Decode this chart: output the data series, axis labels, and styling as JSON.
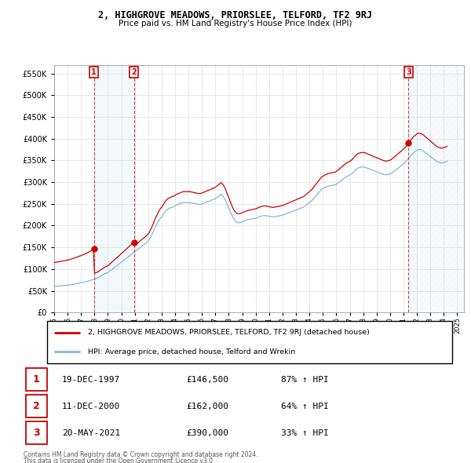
{
  "title": "2, HIGHGROVE MEADOWS, PRIORSLEE, TELFORD, TF2 9RJ",
  "subtitle": "Price paid vs. HM Land Registry's House Price Index (HPI)",
  "legend_line1": "2, HIGHGROVE MEADOWS, PRIORSLEE, TELFORD, TF2 9RJ (detached house)",
  "legend_line2": "HPI: Average price, detached house, Telford and Wrekin",
  "footer1": "Contains HM Land Registry data © Crown copyright and database right 2024.",
  "footer2": "This data is licensed under the Open Government Licence v3.0.",
  "sales": [
    {
      "num": 1,
      "date": "19-DEC-1997",
      "price": 146500,
      "pct": "87%",
      "dir": "↑",
      "x": 1997.96
    },
    {
      "num": 2,
      "date": "11-DEC-2000",
      "price": 162000,
      "pct": "64%",
      "dir": "↑",
      "x": 2000.94
    },
    {
      "num": 3,
      "date": "20-MAY-2021",
      "price": 390000,
      "pct": "33%",
      "dir": "↑",
      "x": 2021.38
    }
  ],
  "hpi_color": "#7db8d8",
  "sale_color": "#cc0000",
  "ylim": [
    0,
    570000
  ],
  "xlim": [
    1995.0,
    2025.5
  ],
  "yticks": [
    0,
    50000,
    100000,
    150000,
    200000,
    250000,
    300000,
    350000,
    400000,
    450000,
    500000,
    550000
  ],
  "xticks": [
    1995,
    1996,
    1997,
    1998,
    1999,
    2000,
    2001,
    2002,
    2003,
    2004,
    2005,
    2006,
    2007,
    2008,
    2009,
    2010,
    2011,
    2012,
    2013,
    2014,
    2015,
    2016,
    2017,
    2018,
    2019,
    2020,
    2021,
    2022,
    2023,
    2024,
    2025
  ],
  "hpi_data": {
    "years": [
      1995.0,
      1995.083,
      1995.167,
      1995.25,
      1995.333,
      1995.417,
      1995.5,
      1995.583,
      1995.667,
      1995.75,
      1995.833,
      1995.917,
      1996.0,
      1996.083,
      1996.167,
      1996.25,
      1996.333,
      1996.417,
      1996.5,
      1996.583,
      1996.667,
      1996.75,
      1996.833,
      1996.917,
      1997.0,
      1997.083,
      1997.167,
      1997.25,
      1997.333,
      1997.417,
      1997.5,
      1997.583,
      1997.667,
      1997.75,
      1997.833,
      1997.917,
      1998.0,
      1998.083,
      1998.167,
      1998.25,
      1998.333,
      1998.417,
      1998.5,
      1998.583,
      1998.667,
      1998.75,
      1998.833,
      1998.917,
      1999.0,
      1999.083,
      1999.167,
      1999.25,
      1999.333,
      1999.417,
      1999.5,
      1999.583,
      1999.667,
      1999.75,
      1999.833,
      1999.917,
      2000.0,
      2000.083,
      2000.167,
      2000.25,
      2000.333,
      2000.417,
      2000.5,
      2000.583,
      2000.667,
      2000.75,
      2000.833,
      2000.917,
      2001.0,
      2001.083,
      2001.167,
      2001.25,
      2001.333,
      2001.417,
      2001.5,
      2001.583,
      2001.667,
      2001.75,
      2001.833,
      2001.917,
      2002.0,
      2002.083,
      2002.167,
      2002.25,
      2002.333,
      2002.417,
      2002.5,
      2002.583,
      2002.667,
      2002.75,
      2002.833,
      2002.917,
      2003.0,
      2003.083,
      2003.167,
      2003.25,
      2003.333,
      2003.417,
      2003.5,
      2003.583,
      2003.667,
      2003.75,
      2003.833,
      2003.917,
      2004.0,
      2004.083,
      2004.167,
      2004.25,
      2004.333,
      2004.417,
      2004.5,
      2004.583,
      2004.667,
      2004.75,
      2004.833,
      2004.917,
      2005.0,
      2005.083,
      2005.167,
      2005.25,
      2005.333,
      2005.417,
      2005.5,
      2005.583,
      2005.667,
      2005.75,
      2005.833,
      2005.917,
      2006.0,
      2006.083,
      2006.167,
      2006.25,
      2006.333,
      2006.417,
      2006.5,
      2006.583,
      2006.667,
      2006.75,
      2006.833,
      2006.917,
      2007.0,
      2007.083,
      2007.167,
      2007.25,
      2007.333,
      2007.417,
      2007.5,
      2007.583,
      2007.667,
      2007.75,
      2007.833,
      2007.917,
      2008.0,
      2008.083,
      2008.167,
      2008.25,
      2008.333,
      2008.417,
      2008.5,
      2008.583,
      2008.667,
      2008.75,
      2008.833,
      2008.917,
      2009.0,
      2009.083,
      2009.167,
      2009.25,
      2009.333,
      2009.417,
      2009.5,
      2009.583,
      2009.667,
      2009.75,
      2009.833,
      2009.917,
      2010.0,
      2010.083,
      2010.167,
      2010.25,
      2010.333,
      2010.417,
      2010.5,
      2010.583,
      2010.667,
      2010.75,
      2010.833,
      2010.917,
      2011.0,
      2011.083,
      2011.167,
      2011.25,
      2011.333,
      2011.417,
      2011.5,
      2011.583,
      2011.667,
      2011.75,
      2011.833,
      2011.917,
      2012.0,
      2012.083,
      2012.167,
      2012.25,
      2012.333,
      2012.417,
      2012.5,
      2012.583,
      2012.667,
      2012.75,
      2012.833,
      2012.917,
      2013.0,
      2013.083,
      2013.167,
      2013.25,
      2013.333,
      2013.417,
      2013.5,
      2013.583,
      2013.667,
      2013.75,
      2013.833,
      2013.917,
      2014.0,
      2014.083,
      2014.167,
      2014.25,
      2014.333,
      2014.417,
      2014.5,
      2014.583,
      2014.667,
      2014.75,
      2014.833,
      2014.917,
      2015.0,
      2015.083,
      2015.167,
      2015.25,
      2015.333,
      2015.417,
      2015.5,
      2015.583,
      2015.667,
      2015.75,
      2015.833,
      2015.917,
      2016.0,
      2016.083,
      2016.167,
      2016.25,
      2016.333,
      2016.417,
      2016.5,
      2016.583,
      2016.667,
      2016.75,
      2016.833,
      2016.917,
      2017.0,
      2017.083,
      2017.167,
      2017.25,
      2017.333,
      2017.417,
      2017.5,
      2017.583,
      2017.667,
      2017.75,
      2017.833,
      2017.917,
      2018.0,
      2018.083,
      2018.167,
      2018.25,
      2018.333,
      2018.417,
      2018.5,
      2018.583,
      2018.667,
      2018.75,
      2018.833,
      2018.917,
      2019.0,
      2019.083,
      2019.167,
      2019.25,
      2019.333,
      2019.417,
      2019.5,
      2019.583,
      2019.667,
      2019.75,
      2019.833,
      2019.917,
      2020.0,
      2020.083,
      2020.167,
      2020.25,
      2020.333,
      2020.417,
      2020.5,
      2020.583,
      2020.667,
      2020.75,
      2020.833,
      2020.917,
      2021.0,
      2021.083,
      2021.167,
      2021.25,
      2021.333,
      2021.417,
      2021.5,
      2021.583,
      2021.667,
      2021.75,
      2021.833,
      2021.917,
      2022.0,
      2022.083,
      2022.167,
      2022.25,
      2022.333,
      2022.417,
      2022.5,
      2022.583,
      2022.667,
      2022.75,
      2022.833,
      2022.917,
      2023.0,
      2023.083,
      2023.167,
      2023.25,
      2023.333,
      2023.417,
      2023.5,
      2023.583,
      2023.667,
      2023.75,
      2023.833,
      2023.917,
      2024.0,
      2024.083,
      2024.167,
      2024.25
    ],
    "values": [
      60000,
      60200,
      60500,
      60800,
      61000,
      61200,
      61500,
      61800,
      62000,
      62200,
      62500,
      62800,
      63000,
      63300,
      63600,
      64000,
      64500,
      65000,
      65500,
      66000,
      66500,
      67000,
      67500,
      68000,
      68500,
      69000,
      69500,
      70000,
      70500,
      71200,
      72000,
      72800,
      73500,
      74200,
      75000,
      76000,
      77000,
      78000,
      79000,
      80000,
      81500,
      83000,
      84500,
      86000,
      87500,
      89000,
      90000,
      91000,
      92000,
      94000,
      96000,
      98000,
      100000,
      102000,
      104000,
      106000,
      108000,
      110000,
      112000,
      114000,
      116000,
      118000,
      120000,
      122000,
      124000,
      126000,
      128000,
      130000,
      132000,
      134000,
      136000,
      138000,
      140000,
      142000,
      144000,
      146000,
      148000,
      150000,
      152000,
      154000,
      156000,
      158000,
      160000,
      162000,
      164000,
      168000,
      173000,
      178000,
      183000,
      189000,
      195000,
      200000,
      205000,
      210000,
      214000,
      218000,
      220000,
      224000,
      228000,
      232000,
      235000,
      237000,
      239000,
      240000,
      241000,
      242000,
      243000,
      244000,
      245000,
      247000,
      248000,
      249000,
      250000,
      251000,
      252000,
      252500,
      253000,
      253000,
      253000,
      253000,
      253000,
      253000,
      252500,
      252000,
      251500,
      251000,
      250500,
      250000,
      249500,
      249000,
      249000,
      249500,
      250000,
      251000,
      252000,
      253000,
      254000,
      255000,
      256000,
      257000,
      258000,
      259000,
      260000,
      261000,
      262000,
      264000,
      266000,
      268000,
      270000,
      272000,
      270000,
      267000,
      263000,
      258000,
      252000,
      246000,
      240000,
      234000,
      228000,
      222000,
      217000,
      213000,
      210000,
      208000,
      207000,
      206500,
      207000,
      208000,
      209000,
      210000,
      211000,
      212000,
      213000,
      213500,
      214000,
      214500,
      215000,
      215500,
      216000,
      216500,
      217000,
      218000,
      219000,
      220000,
      221000,
      222000,
      222500,
      223000,
      223000,
      223000,
      222500,
      222000,
      221500,
      221000,
      220500,
      220000,
      220000,
      220500,
      221000,
      221500,
      222000,
      222500,
      223000,
      223500,
      224000,
      225000,
      226000,
      227000,
      228000,
      229000,
      230000,
      231000,
      232000,
      233000,
      234000,
      235000,
      236000,
      237000,
      238000,
      239000,
      240000,
      241000,
      242000,
      243000,
      245000,
      247000,
      249000,
      251000,
      253000,
      255000,
      257000,
      260000,
      263000,
      266000,
      269000,
      272000,
      275000,
      278000,
      281000,
      284000,
      285000,
      287000,
      288000,
      289000,
      290000,
      291000,
      291500,
      292000,
      292500,
      293000,
      293500,
      294000,
      295000,
      297000,
      299000,
      301000,
      303000,
      305000,
      307000,
      309000,
      311000,
      313000,
      314000,
      315000,
      316000,
      318000,
      320000,
      322000,
      325000,
      328000,
      330000,
      332000,
      333000,
      334000,
      334500,
      335000,
      335000,
      334500,
      334000,
      333000,
      332000,
      331000,
      330000,
      329000,
      328000,
      327000,
      326000,
      325000,
      324000,
      323000,
      322000,
      321000,
      320000,
      319000,
      318000,
      317500,
      317000,
      317000,
      317500,
      318000,
      319000,
      320000,
      322000,
      324000,
      326000,
      328000,
      330000,
      332000,
      334000,
      336000,
      338000,
      340000,
      342000,
      344000,
      347000,
      350000,
      353000,
      356000,
      359000,
      362000,
      365000,
      368000,
      370000,
      372000,
      374000,
      375000,
      375500,
      375000,
      374000,
      373000,
      371000,
      369000,
      367000,
      365000,
      363000,
      361000,
      359000,
      357000,
      355000,
      353000,
      351000,
      349000,
      347500,
      346000,
      345000,
      344500,
      344000,
      344500,
      345000,
      346000,
      347000,
      348000
    ]
  }
}
